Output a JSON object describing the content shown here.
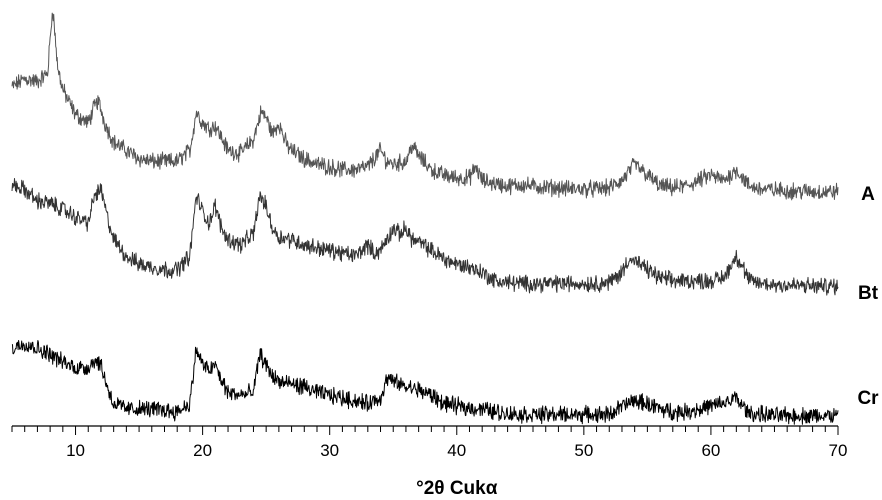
{
  "chart_data": {
    "type": "line",
    "title": "",
    "xlabel": "°2θ Cukα",
    "ylabel": "",
    "xlim": [
      5,
      70
    ],
    "xticks": [
      10,
      20,
      30,
      40,
      50,
      60,
      70
    ],
    "grid": false,
    "legend": "series labels at right end of each trace",
    "x_unit": "°2θ",
    "series": [
      {
        "name": "A",
        "color": "#555555",
        "points": [
          [
            5,
            20.5
          ],
          [
            6,
            22
          ],
          [
            7,
            21.5
          ],
          [
            7.8,
            23
          ],
          [
            8.2,
            35
          ],
          [
            8.6,
            24
          ],
          [
            9,
            20
          ],
          [
            10,
            15.5
          ],
          [
            11,
            14
          ],
          [
            11.5,
            17
          ],
          [
            11.8,
            18
          ],
          [
            12.3,
            14
          ],
          [
            13,
            10.5
          ],
          [
            14,
            9
          ],
          [
            15,
            7.5
          ],
          [
            16,
            7
          ],
          [
            17,
            7
          ],
          [
            18,
            7
          ],
          [
            19,
            9
          ],
          [
            19.5,
            16
          ],
          [
            20,
            14
          ],
          [
            20.5,
            13
          ],
          [
            21,
            13.5
          ],
          [
            22,
            9
          ],
          [
            23,
            8.5
          ],
          [
            24,
            11
          ],
          [
            24.6,
            16
          ],
          [
            25,
            15
          ],
          [
            25.5,
            12
          ],
          [
            26,
            14
          ],
          [
            26.6,
            10
          ],
          [
            27,
            9
          ],
          [
            28,
            7.5
          ],
          [
            29,
            6.5
          ],
          [
            30,
            6
          ],
          [
            31,
            5.5
          ],
          [
            32,
            5.5
          ],
          [
            33,
            6
          ],
          [
            34,
            9
          ],
          [
            34.5,
            7
          ],
          [
            35,
            6.5
          ],
          [
            36,
            7
          ],
          [
            36.5,
            10
          ],
          [
            37,
            8
          ],
          [
            38,
            5.5
          ],
          [
            39,
            4.5
          ],
          [
            40,
            4
          ],
          [
            41,
            4
          ],
          [
            41.5,
            6
          ],
          [
            42,
            3.5
          ],
          [
            43,
            3
          ],
          [
            44,
            2.5
          ],
          [
            45,
            2.8
          ],
          [
            46,
            2.5
          ],
          [
            47,
            2.3
          ],
          [
            48,
            2.2
          ],
          [
            49,
            2
          ],
          [
            50,
            2
          ],
          [
            51,
            2
          ],
          [
            52,
            2.2
          ],
          [
            53,
            3.5
          ],
          [
            54,
            6.5
          ],
          [
            55,
            4.5
          ],
          [
            56,
            2.5
          ],
          [
            57,
            2.2
          ],
          [
            58,
            2.5
          ],
          [
            59,
            3.5
          ],
          [
            60,
            4.5
          ],
          [
            61,
            3.5
          ],
          [
            62,
            5.5
          ],
          [
            62.5,
            4
          ],
          [
            63,
            2.5
          ],
          [
            64,
            2
          ],
          [
            65,
            1.8
          ],
          [
            66,
            1.7
          ],
          [
            67,
            1.6
          ],
          [
            68,
            1.5
          ],
          [
            69,
            1.5
          ],
          [
            70,
            1.5
          ]
        ]
      },
      {
        "name": "Bt",
        "color": "#333333",
        "points": [
          [
            5,
            21
          ],
          [
            6,
            20
          ],
          [
            7,
            18
          ],
          [
            8,
            17.5
          ],
          [
            9,
            16.5
          ],
          [
            10,
            15
          ],
          [
            11,
            14
          ],
          [
            11.5,
            19
          ],
          [
            12,
            20
          ],
          [
            12.5,
            15
          ],
          [
            13,
            11
          ],
          [
            14,
            8
          ],
          [
            15,
            6.5
          ],
          [
            16,
            6
          ],
          [
            17,
            5.5
          ],
          [
            18,
            5.5
          ],
          [
            19,
            8
          ],
          [
            19.5,
            19
          ],
          [
            20,
            16
          ],
          [
            20.5,
            14
          ],
          [
            21,
            17
          ],
          [
            21.5,
            13
          ],
          [
            22,
            11
          ],
          [
            23,
            10
          ],
          [
            24,
            12
          ],
          [
            24.5,
            19
          ],
          [
            25,
            17
          ],
          [
            25.5,
            13
          ],
          [
            26,
            11.5
          ],
          [
            27,
            11
          ],
          [
            28,
            10
          ],
          [
            29,
            9.5
          ],
          [
            30,
            9
          ],
          [
            31,
            8.5
          ],
          [
            32,
            8
          ],
          [
            33,
            10
          ],
          [
            33.5,
            8.5
          ],
          [
            34,
            9
          ],
          [
            35,
            13
          ],
          [
            35.5,
            12
          ],
          [
            36,
            13
          ],
          [
            36.5,
            11
          ],
          [
            37,
            10.5
          ],
          [
            38,
            9
          ],
          [
            39,
            7.5
          ],
          [
            40,
            6.5
          ],
          [
            41,
            6
          ],
          [
            42,
            5
          ],
          [
            43,
            3.5
          ],
          [
            44,
            3.2
          ],
          [
            45,
            3
          ],
          [
            46,
            3
          ],
          [
            47,
            3
          ],
          [
            48,
            3
          ],
          [
            49,
            3
          ],
          [
            50,
            3
          ],
          [
            51,
            3
          ],
          [
            52,
            3.2
          ],
          [
            53,
            5
          ],
          [
            53.5,
            7.5
          ],
          [
            54,
            7
          ],
          [
            55,
            5.5
          ],
          [
            56,
            4
          ],
          [
            57,
            3.5
          ],
          [
            58,
            3.5
          ],
          [
            59,
            3.5
          ],
          [
            60,
            3.5
          ],
          [
            61,
            4
          ],
          [
            62,
            8
          ],
          [
            62.5,
            6
          ],
          [
            63,
            3.5
          ],
          [
            64,
            3
          ],
          [
            65,
            2.8
          ],
          [
            66,
            2.7
          ],
          [
            67,
            2.6
          ],
          [
            68,
            2.5
          ],
          [
            69,
            2.5
          ],
          [
            70,
            2.5
          ]
        ]
      },
      {
        "name": "Cr",
        "color": "#000000",
        "points": [
          [
            5,
            13
          ],
          [
            6,
            14
          ],
          [
            7,
            13
          ],
          [
            8,
            12
          ],
          [
            9,
            10.5
          ],
          [
            10,
            9.5
          ],
          [
            11,
            9.5
          ],
          [
            11.5,
            11
          ],
          [
            12,
            10
          ],
          [
            12.5,
            6
          ],
          [
            13,
            3
          ],
          [
            14,
            2
          ],
          [
            15,
            2
          ],
          [
            16,
            2
          ],
          [
            17,
            1.8
          ],
          [
            18,
            1.5
          ],
          [
            19,
            3
          ],
          [
            19.5,
            13
          ],
          [
            20,
            10
          ],
          [
            20.5,
            9
          ],
          [
            21,
            10
          ],
          [
            21.5,
            7
          ],
          [
            22,
            5
          ],
          [
            23,
            4.5
          ],
          [
            24,
            5
          ],
          [
            24.5,
            12
          ],
          [
            25,
            10
          ],
          [
            25.5,
            8
          ],
          [
            26,
            7
          ],
          [
            27,
            6.5
          ],
          [
            28,
            6
          ],
          [
            29,
            5
          ],
          [
            30,
            4.5
          ],
          [
            31,
            4
          ],
          [
            32,
            3.5
          ],
          [
            33,
            3
          ],
          [
            34,
            4
          ],
          [
            34.5,
            7.5
          ],
          [
            35,
            7
          ],
          [
            36,
            6
          ],
          [
            37,
            5.5
          ],
          [
            38,
            4.5
          ],
          [
            39,
            3
          ],
          [
            40,
            2.5
          ],
          [
            41,
            2.2
          ],
          [
            42,
            2
          ],
          [
            43,
            1.5
          ],
          [
            44,
            1.2
          ],
          [
            45,
            1
          ],
          [
            46,
            1
          ],
          [
            47,
            1
          ],
          [
            48,
            1
          ],
          [
            49,
            1
          ],
          [
            50,
            1
          ],
          [
            51,
            1
          ],
          [
            52,
            1
          ],
          [
            53,
            2.5
          ],
          [
            54,
            3.5
          ],
          [
            55,
            3
          ],
          [
            56,
            2
          ],
          [
            57,
            1.5
          ],
          [
            58,
            1.5
          ],
          [
            59,
            2
          ],
          [
            60,
            2.5
          ],
          [
            61,
            3
          ],
          [
            62,
            4
          ],
          [
            62.5,
            2.5
          ],
          [
            63,
            1.2
          ],
          [
            64,
            1
          ],
          [
            65,
            0.8
          ],
          [
            66,
            0.8
          ],
          [
            67,
            0.8
          ],
          [
            68,
            0.8
          ],
          [
            69,
            0.8
          ],
          [
            70,
            0.8
          ]
        ]
      }
    ]
  }
}
